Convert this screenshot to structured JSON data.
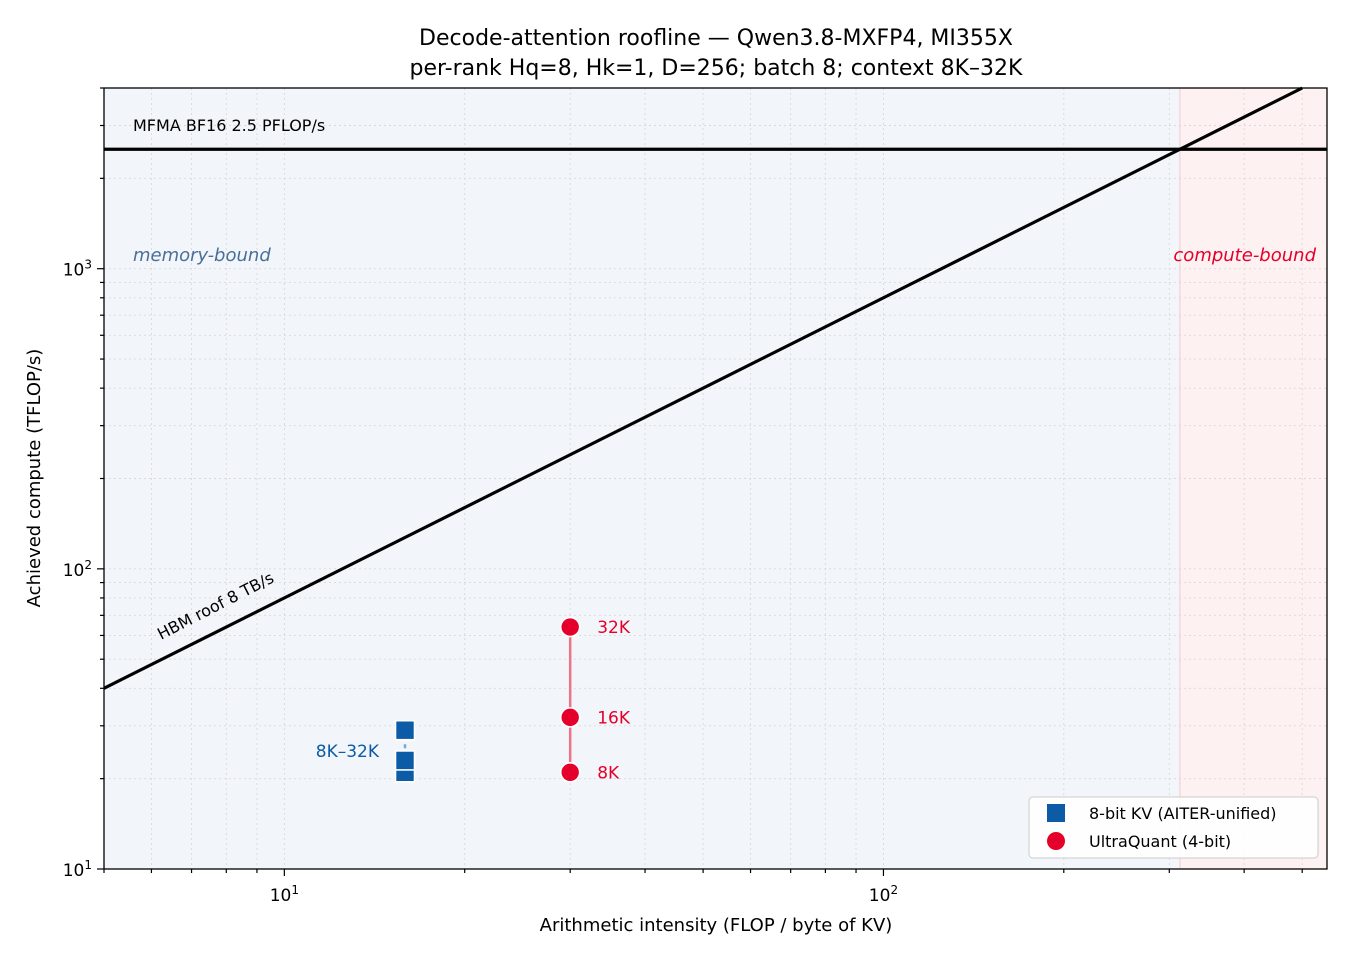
{
  "chart_data": {
    "type": "scatter",
    "title": "Decode-attention roofline — Qwen3.8-MXFP4, MI355X",
    "subtitle": "per-rank Hq=8, Hk=1, D=256; batch 8; context 8K–32K",
    "xlabel": "Arithmetic intensity  (FLOP / byte of KV)",
    "ylabel": "Achieved compute  (TFLOP/s)",
    "xscale": "log",
    "yscale": "log",
    "xlim": [
      5,
      550
    ],
    "ylim": [
      10,
      4000
    ],
    "grid": true,
    "legend_position": "lower-right",
    "x_ticks": [
      {
        "value": 10,
        "base": "10",
        "exp": "1"
      },
      {
        "value": 100,
        "base": "10",
        "exp": "2"
      }
    ],
    "y_ticks": [
      {
        "value": 10,
        "base": "10",
        "exp": "1"
      },
      {
        "value": 100,
        "base": "10",
        "exp": "2"
      },
      {
        "value": 1000,
        "base": "10",
        "exp": "3"
      }
    ],
    "regions": [
      {
        "label": "memory-bound",
        "x_range": [
          5,
          312.5
        ],
        "color": "#e8eff6"
      },
      {
        "label": "compute-bound",
        "x_range": [
          312.5,
          550
        ],
        "color": "#fbe6e8"
      }
    ],
    "roofs": [
      {
        "label": "MFMA BF16  2.5 PFLOP/s",
        "type": "flat",
        "value": 2500
      },
      {
        "label": "HBM roof  8 TB/s",
        "type": "bandwidth",
        "tb_per_s": 8
      }
    ],
    "series": [
      {
        "name": "8-bit KV (AITER-unified)",
        "marker": "square",
        "color": "#0b5ba6",
        "line_color": "#7aa6d0",
        "group_label": "8K–32K",
        "points": [
          {
            "x": 15.9,
            "y": 21
          },
          {
            "x": 15.9,
            "y": 23
          },
          {
            "x": 15.9,
            "y": 29
          }
        ]
      },
      {
        "name": "UltraQuant (4-bit)",
        "marker": "circle",
        "color": "#e5002b",
        "line_color": "#ec7388",
        "points": [
          {
            "x": 30,
            "y": 21,
            "label": "8K"
          },
          {
            "x": 30,
            "y": 32,
            "label": "16K"
          },
          {
            "x": 30,
            "y": 64,
            "label": "32K"
          }
        ]
      }
    ]
  },
  "colors": {
    "memory_text": "#4a6f98",
    "compute_text": "#e5002b",
    "grid": "#d9d9d9",
    "roof": "#000000"
  }
}
